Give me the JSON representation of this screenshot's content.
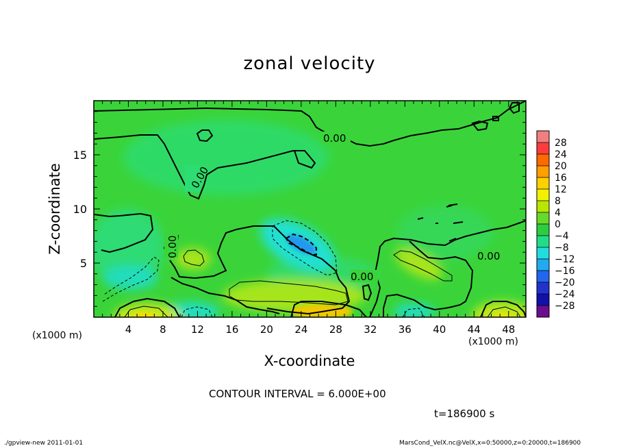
{
  "title": "zonal velocity",
  "footer": {
    "left": "./gpview-new  2011-01-01",
    "right": "MarsCond_VelX.nc@VelX,x=0:50000,z=0:20000,t=186900"
  },
  "contour_interval": "CONTOUR INTERVAL = 6.000E+00",
  "time_label": "t=186900 s",
  "chart_data": {
    "type": "heatmap",
    "title": "zonal velocity",
    "xlabel": "X-coordinate",
    "ylabel": "Z-coordinate",
    "x_unit": "(x1000 m)",
    "xlim": [
      0,
      50
    ],
    "ylim": [
      0,
      20
    ],
    "x_ticks": [
      4,
      8,
      12,
      16,
      20,
      24,
      28,
      32,
      36,
      40,
      44,
      48
    ],
    "y_ticks": [
      5,
      10,
      15
    ],
    "colorbar": {
      "levels": [
        28,
        24,
        20,
        16,
        12,
        8,
        4,
        0,
        -4,
        -8,
        -12,
        -16,
        -20,
        -24,
        -28
      ],
      "colors": [
        "#f08080",
        "#ff3c3c",
        "#ff6a00",
        "#ff9e00",
        "#ffd000",
        "#f2f200",
        "#b8e600",
        "#66d92a",
        "#2ecc40",
        "#22dd88",
        "#22dddd",
        "#22aaf0",
        "#2266ee",
        "#2233cc",
        "#1111aa",
        "#6a0d8f"
      ]
    },
    "contour_labels": [
      "0.00",
      "0.00",
      "0.00",
      "0.00",
      "0.00"
    ],
    "features": [
      {
        "x": 24,
        "z": 7,
        "u": -12,
        "kind": "negative core"
      },
      {
        "x": 25,
        "z": 0.5,
        "u": 12,
        "kind": "positive near surface"
      },
      {
        "x": 21,
        "z": 2,
        "u": 6,
        "kind": "positive"
      },
      {
        "x": 6,
        "z": 0.3,
        "u": 12,
        "kind": "positive near surface"
      },
      {
        "x": 47,
        "z": 0.5,
        "u": 10,
        "kind": "positive near surface"
      },
      {
        "x": 37,
        "z": 5,
        "u": 6,
        "kind": "positive"
      },
      {
        "x": 11,
        "z": 5.5,
        "u": 6,
        "kind": "positive"
      },
      {
        "x": 6,
        "z": 3.5,
        "u": -6,
        "kind": "negative"
      },
      {
        "x": 11,
        "z": 0.6,
        "u": -8,
        "kind": "negative"
      },
      {
        "x": 37,
        "z": 1,
        "u": -6,
        "kind": "negative"
      }
    ]
  }
}
